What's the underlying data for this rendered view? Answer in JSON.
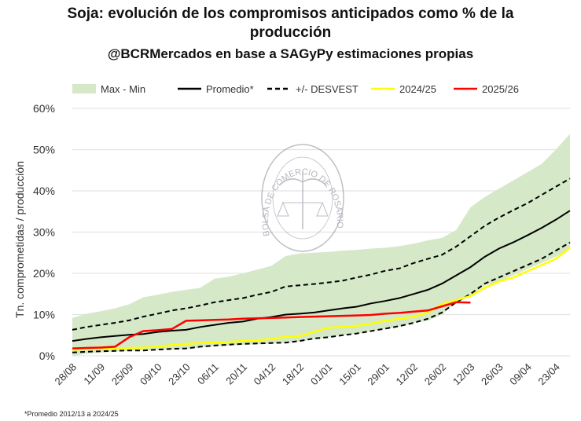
{
  "chart_data": {
    "type": "line",
    "title": "Soja: evolución de los compromisos anticipados como % de la",
    "title_line2": "producción",
    "subtitle": "@BCRMercados en base a SAGyPy estimaciones propias",
    "ylabel": "Tn. comprometidas / producción",
    "xlabel": "",
    "ylim": [
      0,
      60
    ],
    "y_ticks": [
      "0%",
      "10%",
      "20%",
      "30%",
      "40%",
      "50%",
      "60%"
    ],
    "x_tick_labels": [
      "28/08",
      "11/09",
      "25/09",
      "09/10",
      "23/10",
      "06/11",
      "20/11",
      "04/12",
      "18/12",
      "01/01",
      "15/01",
      "29/01",
      "12/02",
      "26/02",
      "12/03",
      "26/03",
      "09/04",
      "23/04"
    ],
    "grid": "horizontal",
    "legend_position": "top",
    "footnote": "*Promedio 2012/13 a 2024/25",
    "watermark": "BOLSA DE COMERCIO DE ROSARIO",
    "band": {
      "name": "Max - Min",
      "color": "#d5e8c8",
      "max": [
        9.2,
        10.2,
        10.8,
        11.5,
        12.5,
        14.2,
        14.8,
        15.5,
        16,
        16.5,
        18.7,
        19.2,
        20,
        20.9,
        21.8,
        24.2,
        24.8,
        25,
        25.2,
        25.5,
        25.7,
        26,
        26.2,
        26.6,
        27.2,
        28,
        28.6,
        30.5,
        36,
        38.5,
        40.5,
        42.5,
        44.5,
        46.5,
        50,
        53.8
      ],
      "min": [
        0,
        0.5,
        0.8,
        1,
        1.2,
        1.3,
        1.4,
        1.5,
        1.6,
        2,
        2.3,
        2.5,
        2.7,
        2.8,
        3,
        3.2,
        3.5,
        4,
        4.5,
        5,
        5.3,
        6,
        6.5,
        7,
        8,
        8.5,
        10,
        13,
        14.5,
        17,
        18,
        19.5,
        21,
        22.5,
        24,
        26
      ]
    },
    "series": [
      {
        "name": "Promedio*",
        "color": "#000000",
        "dash": false,
        "values": [
          3.6,
          4.1,
          4.5,
          4.8,
          5.1,
          5.3,
          5.8,
          6.1,
          6.3,
          7,
          7.5,
          8,
          8.3,
          9,
          9.4,
          10,
          10.2,
          10.5,
          11,
          11.5,
          11.9,
          12.7,
          13.3,
          14,
          15,
          16,
          17.5,
          19.5,
          21.5,
          24,
          26,
          27.5,
          29.2,
          31,
          33,
          35.2
        ]
      },
      {
        "name": "+/- DESVEST",
        "color": "#000000",
        "dash": true,
        "values": [
          6.3,
          7,
          7.5,
          8,
          8.6,
          9.5,
          10.2,
          11,
          11.5,
          12.2,
          13,
          13.5,
          14,
          14.8,
          15.5,
          16.8,
          17.1,
          17.4,
          17.8,
          18.2,
          19,
          19.7,
          20.6,
          21.2,
          22.5,
          23.5,
          24.5,
          26.5,
          29,
          31.5,
          33.5,
          35.3,
          37,
          39,
          41,
          43
        ],
        "values_lower": [
          0.8,
          1,
          1.1,
          1.2,
          1.3,
          1.3,
          1.5,
          1.7,
          1.8,
          2.2,
          2.5,
          2.7,
          2.9,
          3,
          3.1,
          3.2,
          3.6,
          4.2,
          4.5,
          5,
          5.4,
          6,
          6.6,
          7.2,
          8,
          9,
          10.5,
          13,
          15,
          17.5,
          19,
          20.5,
          22,
          23.5,
          25.5,
          27.5
        ]
      },
      {
        "name": "2024/25",
        "color": "#ffff00",
        "dash": false,
        "values": [
          1.5,
          1.6,
          1.7,
          1.8,
          1.9,
          2,
          2.2,
          2.6,
          2.9,
          3.1,
          3.2,
          3.4,
          3.6,
          3.8,
          4.1,
          4.6,
          4.8,
          5.8,
          6.8,
          7,
          7.3,
          7.8,
          8.5,
          9,
          9.5,
          10.5,
          12.5,
          13.5,
          14.5,
          16.5,
          18,
          19,
          20.5,
          22,
          23.5,
          26.2
        ]
      },
      {
        "name": "2025/26",
        "color": "#ff0000",
        "dash": false,
        "values": [
          1.8,
          1.9,
          2,
          2.2,
          4.5,
          6,
          6.2,
          6.5,
          8.5,
          8.6,
          8.7,
          8.8,
          9,
          9.1,
          9.2,
          9.3,
          9.4,
          9.5,
          9.6,
          9.7,
          9.8,
          9.9,
          10.2,
          10.4,
          10.7,
          11,
          12,
          13,
          12.9
        ]
      }
    ]
  }
}
